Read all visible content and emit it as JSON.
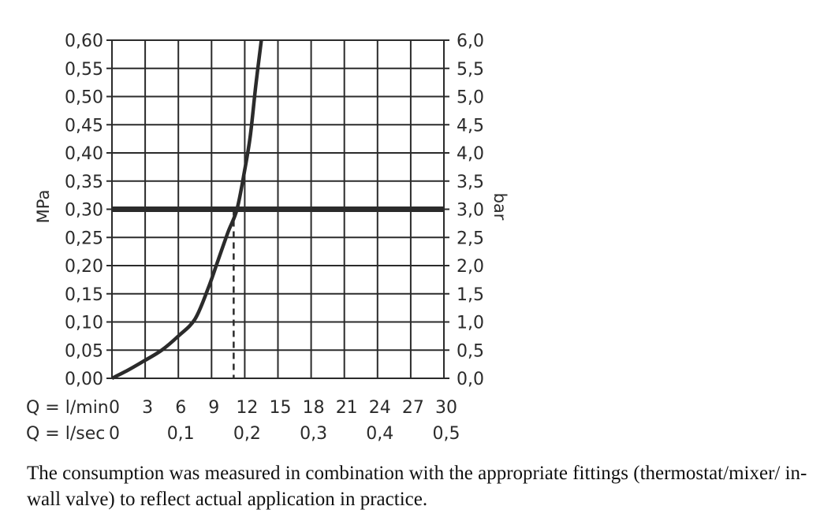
{
  "chart_data": {
    "type": "line",
    "ylabel_left": "MPa",
    "ylabel_right": "bar",
    "x_row_labels": [
      "Q = l/min",
      "Q = l/sec"
    ],
    "x_ticks_lmin": [
      "0",
      "3",
      "6",
      "9",
      "12",
      "15",
      "18",
      "21",
      "24",
      "27",
      "30"
    ],
    "x_ticks_lsec": [
      "0",
      "0,1",
      "0,2",
      "0,3",
      "0,4",
      "0,5"
    ],
    "y_ticks_mpa": [
      "0,00",
      "0,05",
      "0,10",
      "0,15",
      "0,20",
      "0,25",
      "0,30",
      "0,35",
      "0,40",
      "0,45",
      "0,50",
      "0,55",
      "0,60"
    ],
    "y_ticks_bar": [
      "0,0",
      "0,5",
      "1,0",
      "1,5",
      "2,0",
      "2,5",
      "3,0",
      "3,5",
      "4,0",
      "4,5",
      "5,0",
      "5,5",
      "6,0"
    ],
    "xlim": [
      0,
      30
    ],
    "ylim": [
      0,
      0.6
    ],
    "grid": true,
    "series": [
      {
        "x": [
          0,
          1.5,
          3,
          4.5,
          6,
          7.5,
          8.7,
          9.6,
          10.5,
          11.3,
          12,
          12.5,
          13,
          13.5
        ],
        "y": [
          0,
          0.015,
          0.032,
          0.05,
          0.075,
          0.105,
          0.16,
          0.21,
          0.26,
          0.3,
          0.37,
          0.43,
          0.52,
          0.6
        ],
        "color": "#2b2b2b"
      }
    ],
    "reference_line_y": 0.3,
    "reference_x": 11
  },
  "caption": "The consumption was measured in combination with the appropriate fittings (thermostat/mixer/ in-wall valve) to reflect actual application in practice."
}
